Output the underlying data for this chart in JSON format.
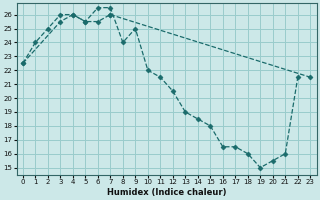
{
  "xlabel": "Humidex (Indice chaleur)",
  "bg_color": "#cce8e8",
  "grid_color": "#99cccc",
  "line_color": "#1a6b6b",
  "xlim": [
    -0.5,
    23.5
  ],
  "ylim": [
    14.5,
    26.8
  ],
  "xticks": [
    0,
    1,
    2,
    3,
    4,
    5,
    6,
    7,
    8,
    9,
    10,
    11,
    12,
    13,
    14,
    15,
    16,
    17,
    18,
    19,
    20,
    21,
    22,
    23
  ],
  "yticks": [
    15,
    16,
    17,
    18,
    19,
    20,
    21,
    22,
    23,
    24,
    25,
    26
  ],
  "line1_x": [
    0,
    1,
    2,
    3,
    4,
    5,
    6,
    7,
    8,
    9,
    10,
    11,
    12,
    13,
    14,
    15,
    16,
    17,
    18,
    19,
    20,
    21,
    22
  ],
  "line1_y": [
    22.5,
    24.0,
    25.0,
    26.0,
    26.0,
    25.5,
    26.5,
    26.5,
    24.0,
    25.0,
    22.0,
    21.5,
    20.5,
    19.0,
    18.5,
    18.0,
    16.5,
    16.5,
    16.0,
    15.0,
    15.5,
    16.0,
    21.5
  ],
  "line2_x": [
    0,
    3,
    4,
    5,
    6,
    7,
    23
  ],
  "line2_y": [
    22.5,
    25.5,
    26.0,
    25.5,
    25.5,
    26.0,
    21.5
  ],
  "xlabel_fontsize": 6,
  "tick_fontsize": 5
}
